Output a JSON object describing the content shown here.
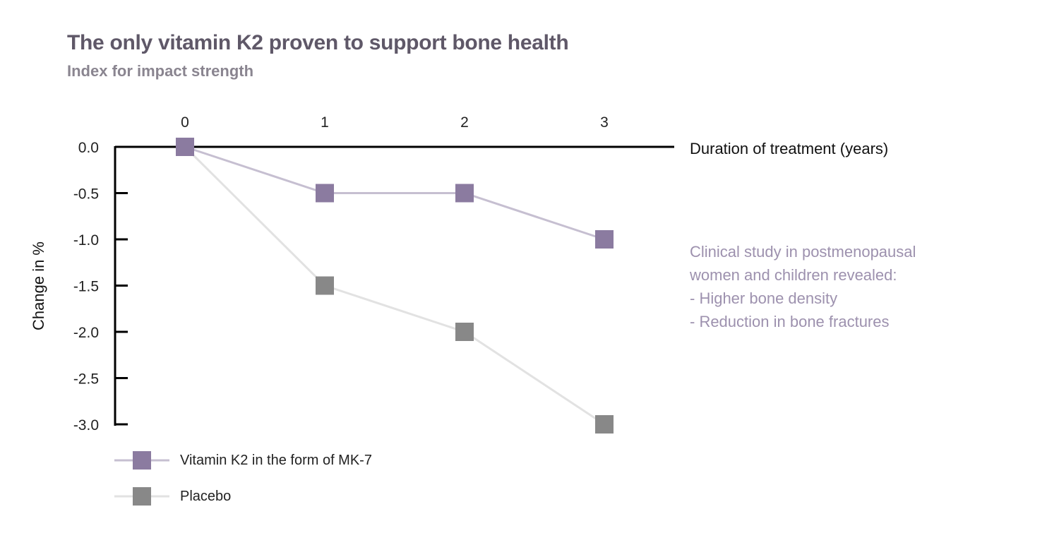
{
  "chart_data": {
    "type": "line",
    "title": "The only vitamin K2 proven to support bone health",
    "subtitle": "Index for impact strength",
    "xlabel": "Duration of treatment (years)",
    "ylabel": "Change in %",
    "x": [
      0,
      1,
      2,
      3
    ],
    "x_tick_labels": [
      "0",
      "1",
      "2",
      "3"
    ],
    "y_tick_labels": [
      "0.0",
      "-0.5",
      "-1.0",
      "-1.5",
      "-2.0",
      "-2.5",
      "-3.0"
    ],
    "y_ticks": [
      0,
      -0.5,
      -1.0,
      -1.5,
      -2.0,
      -2.5,
      -3.0
    ],
    "ylim": [
      -3.0,
      0
    ],
    "xlim": [
      0,
      3
    ],
    "grid": false,
    "legend_position": "bottom-left",
    "series": [
      {
        "name": "Vitamin K2 in the form of MK-7",
        "values": [
          0,
          -0.5,
          -0.5,
          -1.0
        ],
        "marker_color": "#8b7ba0",
        "line_color": "#c6bfd1"
      },
      {
        "name": "Placebo",
        "values": [
          0,
          -1.5,
          -2.0,
          -3.0
        ],
        "marker_color": "#888888",
        "line_color": "#e2e2e2"
      }
    ],
    "annotation": [
      "Clinical study in postmenopausal",
      "women and children revealed:",
      "- Higher bone density",
      "- Reduction in bone fractures"
    ]
  }
}
